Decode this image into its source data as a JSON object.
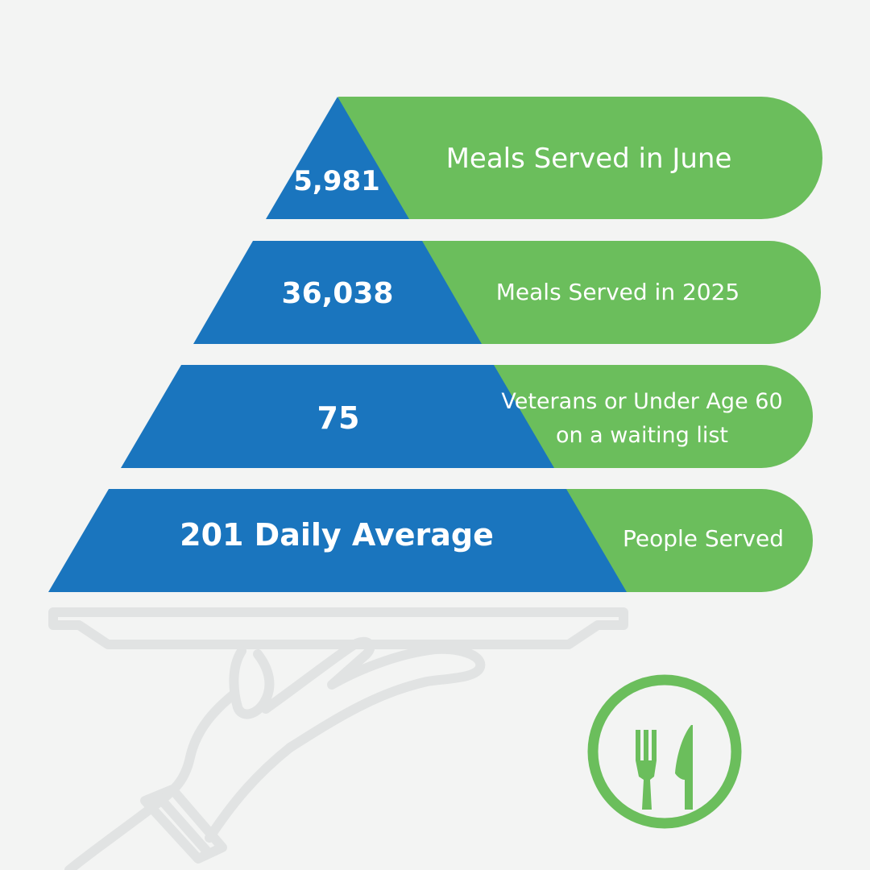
{
  "tiers": [
    {
      "value": "5,981",
      "label_lines": [
        "Meals Served in June"
      ]
    },
    {
      "value": "36,038",
      "label_lines": [
        "Meals Served in 2025"
      ]
    },
    {
      "value": "75",
      "label_lines": [
        "Veterans or Under Age 60",
        "on a waiting list"
      ]
    },
    {
      "value": "201 Daily Average",
      "label_lines": [
        "People Served"
      ]
    }
  ],
  "colors": {
    "background": "#f3f4f3",
    "pyramid_blue": "#1a75be",
    "label_green": "#6bbe5c",
    "outline_gray": "#e1e3e3"
  },
  "icons": {
    "badge": "fork-and-knife-icon",
    "illustration": "hand-holding-tray-icon"
  }
}
